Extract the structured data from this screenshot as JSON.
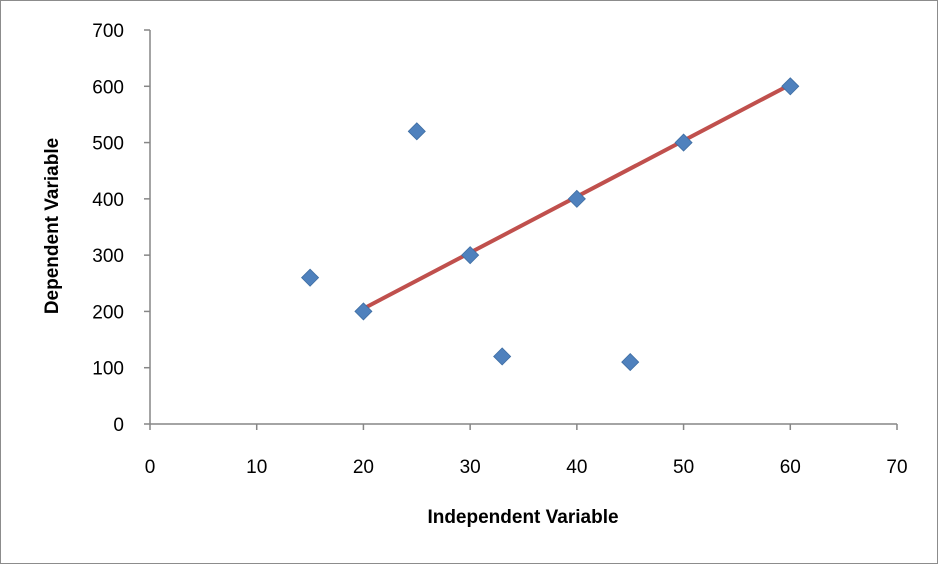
{
  "chart_data": {
    "type": "scatter",
    "title": "",
    "xlabel": "Independent Variable",
    "ylabel": "Dependent Variable",
    "xlim": [
      0,
      70
    ],
    "ylim": [
      0,
      700
    ],
    "xticks": [
      0,
      10,
      20,
      30,
      40,
      50,
      60,
      70
    ],
    "yticks": [
      0,
      100,
      200,
      300,
      400,
      500,
      600,
      700
    ],
    "grid": false,
    "legend": "none",
    "series": [
      {
        "type": "scatter",
        "marker": "diamond",
        "color": "#4f81bd",
        "points": [
          {
            "x": 15,
            "y": 260
          },
          {
            "x": 20,
            "y": 200
          },
          {
            "x": 25,
            "y": 520
          },
          {
            "x": 30,
            "y": 300
          },
          {
            "x": 33,
            "y": 120
          },
          {
            "x": 40,
            "y": 400
          },
          {
            "x": 45,
            "y": 110
          },
          {
            "x": 50,
            "y": 500
          },
          {
            "x": 60,
            "y": 600
          }
        ]
      },
      {
        "type": "line",
        "color": "#c0504d",
        "points": [
          {
            "x": 20,
            "y": 205
          },
          {
            "x": 60,
            "y": 603
          }
        ]
      }
    ]
  }
}
